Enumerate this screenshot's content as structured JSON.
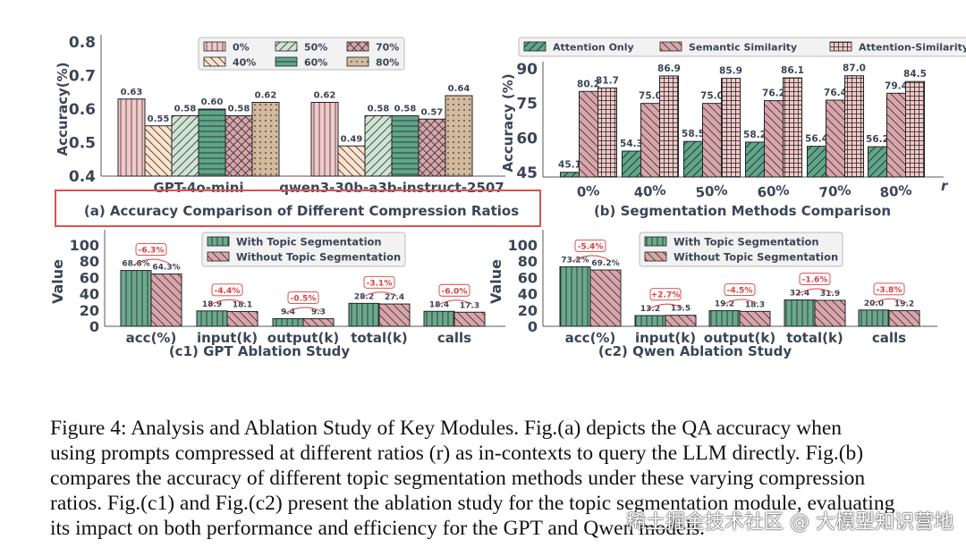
{
  "chart_data": [
    {
      "id": "a",
      "type": "bar",
      "title": "(a) Accuracy Comparison of Different Compression Ratios",
      "ylabel": "Accuracy(%)",
      "xlabel": "",
      "ylim": [
        0.4,
        0.8
      ],
      "yticks": [
        "0.4",
        "0.5",
        "0.6",
        "0.7",
        "0.8"
      ],
      "categories": [
        "GPT-4o-mini",
        "qwen3-30b-a3b-instruct-2507"
      ],
      "series": [
        {
          "name": "0%",
          "values": [
            0.63,
            0.62
          ]
        },
        {
          "name": "40%",
          "values": [
            0.55,
            0.49
          ]
        },
        {
          "name": "50%",
          "values": [
            0.58,
            0.58
          ]
        },
        {
          "name": "60%",
          "values": [
            0.6,
            0.58
          ]
        },
        {
          "name": "70%",
          "values": [
            0.58,
            0.57
          ]
        },
        {
          "name": "80%",
          "values": [
            0.62,
            0.64
          ]
        }
      ],
      "legend": "top-center",
      "highlighted_title": true
    },
    {
      "id": "b",
      "type": "bar",
      "title": "(b) Segmentation Methods Comparison",
      "ylabel": "Accuracy (%)",
      "xlabel": "r",
      "ylim": [
        43,
        90
      ],
      "yticks": [
        "45",
        "60",
        "75",
        "90"
      ],
      "categories": [
        "0%",
        "40%",
        "50%",
        "60%",
        "70%",
        "80%"
      ],
      "series": [
        {
          "name": "Attention Only",
          "values": [
            45.1,
            54.3,
            58.5,
            58.2,
            56.4,
            56.2
          ]
        },
        {
          "name": "Semantic Similarity",
          "values": [
            80.2,
            75.0,
            75.0,
            76.2,
            76.4,
            79.4
          ]
        },
        {
          "name": "Attention-Similarity",
          "values": [
            81.7,
            86.9,
            85.9,
            86.1,
            87.0,
            84.5
          ]
        }
      ],
      "legend": "top"
    },
    {
      "id": "c1",
      "type": "bar",
      "title": "(c1) GPT Ablation Study",
      "ylabel": "Value",
      "ylim": [
        0,
        110
      ],
      "yticks": [
        "0",
        "20",
        "40",
        "60",
        "80",
        "100"
      ],
      "categories": [
        "acc(%)",
        "input(k)",
        "output(k)",
        "total(k)",
        "calls"
      ],
      "series": [
        {
          "name": "With Topic Segmentation",
          "values": [
            68.6,
            18.9,
            9.4,
            28.2,
            18.4
          ],
          "labels": [
            "68.6%",
            "18.9",
            "9.4",
            "28.2",
            "18.4"
          ]
        },
        {
          "name": "Without Topic Segmentation",
          "values": [
            64.3,
            18.1,
            9.3,
            27.4,
            17.3
          ],
          "labels": [
            "64.3%",
            "18.1",
            "9.3",
            "27.4",
            "17.3"
          ]
        }
      ],
      "deltas": [
        "-6.3%",
        "-4.4%",
        "-0.5%",
        "-3.1%",
        "-6.0%"
      ],
      "legend": "top-center"
    },
    {
      "id": "c2",
      "type": "bar",
      "title": "(c2) Qwen Ablation Study",
      "ylabel": "Value",
      "ylim": [
        0,
        110
      ],
      "yticks": [
        "0",
        "20",
        "40",
        "60",
        "80",
        "100"
      ],
      "categories": [
        "acc(%)",
        "input(k)",
        "output(k)",
        "total(k)",
        "calls"
      ],
      "series": [
        {
          "name": "With Topic Segmentation",
          "values": [
            73.2,
            13.2,
            19.2,
            32.4,
            20.0
          ],
          "labels": [
            "73.2%",
            "13.2",
            "19.2",
            "32.4",
            "20.0"
          ]
        },
        {
          "name": "Without Topic Segmentation",
          "values": [
            69.2,
            13.5,
            18.3,
            31.9,
            19.2
          ],
          "labels": [
            "69.2%",
            "13.5",
            "18.3",
            "31.9",
            "19.2"
          ]
        }
      ],
      "deltas": [
        "-5.4%",
        "+2.7%",
        "-4.5%",
        "-1.6%",
        "-3.8%"
      ],
      "legend": "top-center"
    }
  ],
  "caption": {
    "lines": [
      "Figure 4:   Analysis and Ablation Study of Key Modules. Fig.(a) depicts the QA accuracy when",
      "using prompts compressed at different ratios (r) as in-contexts to query the LLM directly. Fig.(b)",
      "compares the accuracy of different topic segmentation methods under these varying compression",
      "ratios. Fig.(c1) and Fig.(c2) present the ablation study for the topic segmentation module, evaluating",
      "its impact on both performance and efficiency for the GPT and Qwen models."
    ]
  },
  "watermark": "稀土掘金技术社区 @ 大模型知识营地",
  "colors": {
    "highlight_box": "#e05050",
    "delta": "#d94040",
    "axis_text": "#3a4556"
  }
}
